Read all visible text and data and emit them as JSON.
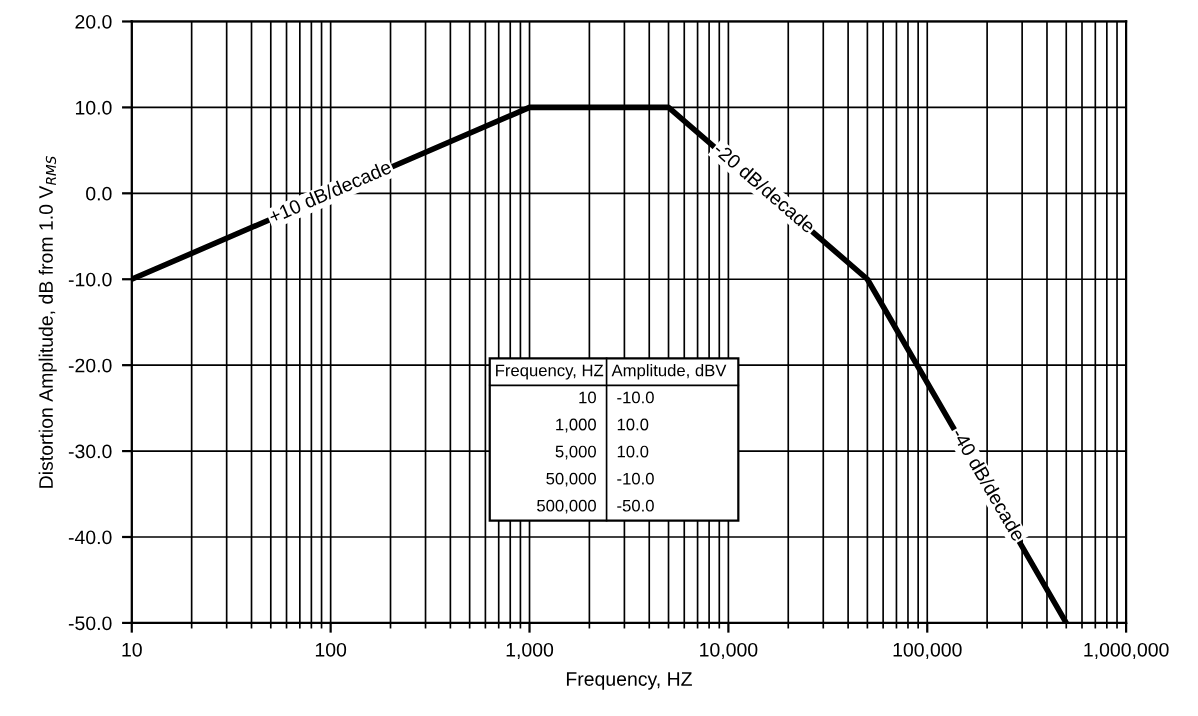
{
  "chart_data": {
    "type": "line",
    "xlabel": "Frequency, HZ",
    "ylabel": "Distortion Amplitude, dB from 1.0 V$_{RMS}$",
    "x": [
      10,
      1000,
      5000,
      50000,
      500000
    ],
    "series": [
      {
        "color": "#000000",
        "values": [
          -10.0,
          10.0,
          10.0,
          -10.0,
          -50.0
        ]
      }
    ],
    "log": "x",
    "xlim": [
      10,
      1000000
    ],
    "ylim": [
      -50,
      20
    ],
    "xticks": [
      10,
      100,
      {
        "value": 1000,
        "label": "1,000"
      },
      {
        "value": 10000,
        "label": "10,000"
      },
      {
        "value": 100000,
        "label": "100,000"
      },
      {
        "value": 1000000,
        "label": "1,000,000"
      }
    ],
    "yticks": [
      {
        "value": -50,
        "label": "-50.0"
      },
      {
        "value": -40,
        "label": "-40.0"
      },
      {
        "value": -30,
        "label": "-30.0"
      },
      {
        "value": -20,
        "label": "-20.0"
      },
      {
        "value": -10,
        "label": "-10.0"
      },
      {
        "value": 0,
        "label": "0.0"
      },
      {
        "value": 10,
        "label": "10.0"
      },
      {
        "value": 20,
        "label": "20.0"
      }
    ],
    "grid": true,
    "marker": "none",
    "line_style": "solid",
    "annotations": [
      {
        "text": "+10 dB/decade",
        "x": 100,
        "y": 0
      },
      {
        "text": "-20 dB/decade",
        "x": 15000,
        "y": 0.5
      },
      {
        "text": "-40 dB/decade",
        "x": 200000,
        "y": -34
      },
      "Frequency, HZ",
      "Amplitude, dBV",
      "10",
      "-10.0",
      "1,000",
      "10.0",
      "5,000",
      "10.0",
      "50,000",
      "-10.0",
      "500,000",
      "-50.0"
    ]
  }
}
